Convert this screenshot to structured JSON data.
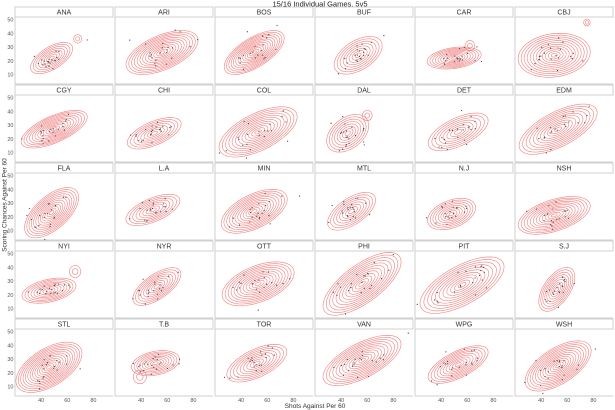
{
  "chart_data": {
    "type": "density-contour-facets",
    "title": "15/16 Individual Games, 5v5",
    "xlabel": "Shots Against Per 60",
    "ylabel": "Scoring Chances Against Per 60",
    "xlim": [
      20,
      95
    ],
    "ylim": [
      3,
      52
    ],
    "xticks": [
      40,
      60,
      80
    ],
    "yticks": [
      10,
      20,
      30,
      40,
      50
    ],
    "grid": false,
    "contour_color": "#f08080",
    "point_color": "#444444",
    "facets": [
      {
        "team": "ANA",
        "center": [
          48,
          22
        ],
        "sd": [
          7,
          5
        ],
        "rho": 0.6,
        "levels": 8,
        "extra": [
          [
            68,
            36,
            2.5
          ]
        ]
      },
      {
        "team": "ARI",
        "center": [
          56,
          26
        ],
        "sd": [
          12,
          7
        ],
        "rho": 0.55,
        "levels": 13,
        "extra": []
      },
      {
        "team": "BOS",
        "center": [
          50,
          26
        ],
        "sd": [
          10,
          7
        ],
        "rho": 0.65,
        "levels": 13,
        "extra": []
      },
      {
        "team": "BUF",
        "center": [
          53,
          24
        ],
        "sd": [
          8,
          6
        ],
        "rho": 0.5,
        "levels": 8,
        "extra": []
      },
      {
        "team": "CAR",
        "center": [
          50,
          22
        ],
        "sd": [
          9,
          3.5
        ],
        "rho": 0.3,
        "levels": 10,
        "extra": [
          [
            62,
            31,
            3
          ]
        ]
      },
      {
        "team": "CBJ",
        "center": [
          50,
          24
        ],
        "sd": [
          12,
          7
        ],
        "rho": 0.15,
        "levels": 12,
        "extra": [
          [
            75,
            48,
            2
          ]
        ]
      },
      {
        "team": "CGY",
        "center": [
          50,
          27
        ],
        "sd": [
          11,
          6
        ],
        "rho": 0.65,
        "levels": 12,
        "extra": []
      },
      {
        "team": "CHI",
        "center": [
          50,
          24
        ],
        "sd": [
          9,
          5
        ],
        "rho": 0.6,
        "levels": 8,
        "extra": []
      },
      {
        "team": "COL",
        "center": [
          53,
          25
        ],
        "sd": [
          13,
          8
        ],
        "rho": 0.6,
        "levels": 12,
        "extra": []
      },
      {
        "team": "DAL",
        "center": [
          45,
          24
        ],
        "sd": [
          7,
          6
        ],
        "rho": 0.4,
        "levels": 8,
        "extra": [
          [
            60,
            37,
            3
          ]
        ]
      },
      {
        "team": "DET",
        "center": [
          53,
          25
        ],
        "sd": [
          10,
          6
        ],
        "rho": 0.6,
        "levels": 8,
        "extra": []
      },
      {
        "team": "EDM",
        "center": [
          53,
          27
        ],
        "sd": [
          13,
          8
        ],
        "rho": 0.65,
        "levels": 11,
        "extra": []
      },
      {
        "team": "FLA",
        "center": [
          48,
          23
        ],
        "sd": [
          9,
          8
        ],
        "rho": 0.6,
        "levels": 12,
        "extra": []
      },
      {
        "team": "L.A",
        "center": [
          49,
          25
        ],
        "sd": [
          9,
          5
        ],
        "rho": 0.6,
        "levels": 8,
        "extra": []
      },
      {
        "team": "MIN",
        "center": [
          50,
          24
        ],
        "sd": [
          11,
          7
        ],
        "rho": 0.55,
        "levels": 12,
        "extra": []
      },
      {
        "team": "MTL",
        "center": [
          48,
          24
        ],
        "sd": [
          8,
          6
        ],
        "rho": 0.6,
        "levels": 8,
        "extra": []
      },
      {
        "team": "N.J",
        "center": [
          48,
          22
        ],
        "sd": [
          8,
          5
        ],
        "rho": 0.4,
        "levels": 9,
        "extra": []
      },
      {
        "team": "NSH",
        "center": [
          50,
          21
        ],
        "sd": [
          12,
          6
        ],
        "rho": 0.5,
        "levels": 12,
        "extra": []
      },
      {
        "team": "NYI",
        "center": [
          46,
          23
        ],
        "sd": [
          9,
          4
        ],
        "rho": 0.4,
        "levels": 9,
        "extra": [
          [
            66,
            37,
            3.5
          ]
        ]
      },
      {
        "team": "NYR",
        "center": [
          52,
          26
        ],
        "sd": [
          8,
          6
        ],
        "rho": 0.65,
        "levels": 9,
        "extra": []
      },
      {
        "team": "OTT",
        "center": [
          53,
          28
        ],
        "sd": [
          12,
          7
        ],
        "rho": 0.5,
        "levels": 12,
        "extra": []
      },
      {
        "team": "PHI",
        "center": [
          56,
          28
        ],
        "sd": [
          13,
          10
        ],
        "rho": 0.7,
        "levels": 12,
        "extra": []
      },
      {
        "team": "PIT",
        "center": [
          56,
          27
        ],
        "sd": [
          14,
          9
        ],
        "rho": 0.65,
        "levels": 11,
        "extra": []
      },
      {
        "team": "S.J",
        "center": [
          52,
          24
        ],
        "sd": [
          6,
          7
        ],
        "rho": 0.55,
        "levels": 9,
        "extra": []
      },
      {
        "team": "STL",
        "center": [
          46,
          24
        ],
        "sd": [
          11,
          8
        ],
        "rho": 0.55,
        "levels": 14,
        "extra": []
      },
      {
        "team": "T.B",
        "center": [
          51,
          27
        ],
        "sd": [
          8,
          4
        ],
        "rho": 0.3,
        "levels": 9,
        "extra": [
          [
            39,
            17,
            4
          ]
        ]
      },
      {
        "team": "TOR",
        "center": [
          52,
          27
        ],
        "sd": [
          10,
          6
        ],
        "rho": 0.6,
        "levels": 9,
        "extra": []
      },
      {
        "team": "VAN",
        "center": [
          56,
          29
        ],
        "sd": [
          13,
          8
        ],
        "rho": 0.65,
        "levels": 12,
        "extra": []
      },
      {
        "team": "WPG",
        "center": [
          53,
          26
        ],
        "sd": [
          10,
          6
        ],
        "rho": 0.65,
        "levels": 10,
        "extra": []
      },
      {
        "team": "WSH",
        "center": [
          53,
          25
        ],
        "sd": [
          11,
          8
        ],
        "rho": 0.6,
        "levels": 13,
        "extra": []
      }
    ]
  }
}
